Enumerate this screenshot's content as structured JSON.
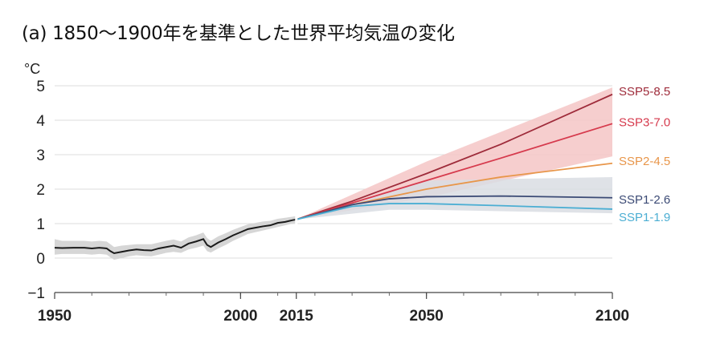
{
  "title": "(a) 1850～1900年を基準とした世界平均気温の変化",
  "chart_data": {
    "type": "line",
    "title": "(a) 1850～1900年を基準とした世界平均気温の変化",
    "ylabel": "°C",
    "xlabel": "",
    "xlim": [
      1950,
      2100
    ],
    "ylim": [
      -1,
      5
    ],
    "y_ticks": [
      "−1",
      "0",
      "1",
      "2",
      "3",
      "4",
      "5"
    ],
    "x_ticks": [
      "1950",
      "2000",
      "2015",
      "2050",
      "2100"
    ],
    "grid": true,
    "historical": {
      "color": "#1a1a1a",
      "band_color": "#d6d6d6",
      "x": [
        1950,
        1952,
        1955,
        1958,
        1960,
        1962,
        1964,
        1965,
        1966,
        1968,
        1970,
        1972,
        1974,
        1976,
        1978,
        1980,
        1982,
        1984,
        1986,
        1988,
        1990,
        1991,
        1992,
        1994,
        1996,
        1998,
        2000,
        2002,
        2004,
        2006,
        2008,
        2010,
        2012,
        2014,
        2015
      ],
      "y": [
        0.3,
        0.29,
        0.3,
        0.3,
        0.28,
        0.3,
        0.28,
        0.2,
        0.14,
        0.18,
        0.22,
        0.25,
        0.23,
        0.22,
        0.28,
        0.32,
        0.36,
        0.3,
        0.42,
        0.48,
        0.55,
        0.38,
        0.32,
        0.45,
        0.55,
        0.66,
        0.75,
        0.84,
        0.88,
        0.92,
        0.95,
        1.02,
        1.05,
        1.1,
        1.12
      ],
      "low": [
        0.1,
        0.12,
        0.12,
        0.12,
        0.1,
        0.12,
        0.1,
        0.02,
        -0.05,
        0.0,
        0.05,
        0.08,
        0.06,
        0.05,
        0.1,
        0.15,
        0.18,
        0.15,
        0.25,
        0.3,
        0.36,
        0.2,
        0.16,
        0.28,
        0.38,
        0.5,
        0.6,
        0.7,
        0.75,
        0.8,
        0.85,
        0.9,
        0.95,
        1.0,
        1.02
      ],
      "high": [
        0.55,
        0.5,
        0.5,
        0.5,
        0.48,
        0.5,
        0.48,
        0.4,
        0.32,
        0.36,
        0.38,
        0.4,
        0.4,
        0.4,
        0.45,
        0.5,
        0.54,
        0.48,
        0.6,
        0.66,
        0.74,
        0.58,
        0.5,
        0.63,
        0.72,
        0.82,
        0.9,
        0.98,
        1.02,
        1.06,
        1.08,
        1.14,
        1.17,
        1.2,
        1.22
      ]
    },
    "series": [
      {
        "name": "SSP5-8.5",
        "color": "#9e2b3a",
        "x": [
          2015,
          2030,
          2050,
          2070,
          2100
        ],
        "y": [
          1.12,
          1.65,
          2.45,
          3.3,
          4.75
        ]
      },
      {
        "name": "SSP3-7.0",
        "color": "#d63a4d",
        "x": [
          2015,
          2030,
          2050,
          2070,
          2100
        ],
        "y": [
          1.12,
          1.6,
          2.25,
          2.9,
          3.9
        ]
      },
      {
        "name": "SSP2-4.5",
        "color": "#e8964a",
        "x": [
          2015,
          2030,
          2050,
          2070,
          2100
        ],
        "y": [
          1.12,
          1.55,
          2.0,
          2.35,
          2.75
        ]
      },
      {
        "name": "SSP1-2.6",
        "color": "#3b4a75",
        "x": [
          2015,
          2030,
          2040,
          2050,
          2070,
          2100
        ],
        "y": [
          1.12,
          1.55,
          1.72,
          1.78,
          1.8,
          1.75
        ]
      },
      {
        "name": "SSP1-1.9",
        "color": "#4baed3",
        "x": [
          2015,
          2030,
          2040,
          2050,
          2070,
          2100
        ],
        "y": [
          1.12,
          1.5,
          1.58,
          1.58,
          1.52,
          1.42
        ]
      }
    ],
    "bands": [
      {
        "name": "high-scenario range",
        "color": "#f4c6c6",
        "x": [
          2015,
          2050,
          2100
        ],
        "low": [
          1.12,
          1.75,
          2.95
        ],
        "high": [
          1.12,
          2.8,
          4.95
        ]
      },
      {
        "name": "low-scenario range",
        "color": "#d9dde3",
        "x": [
          2015,
          2040,
          2050,
          2100
        ],
        "low": [
          1.12,
          1.4,
          1.4,
          1.3
        ],
        "high": [
          1.12,
          1.9,
          2.25,
          2.35
        ]
      }
    ]
  }
}
